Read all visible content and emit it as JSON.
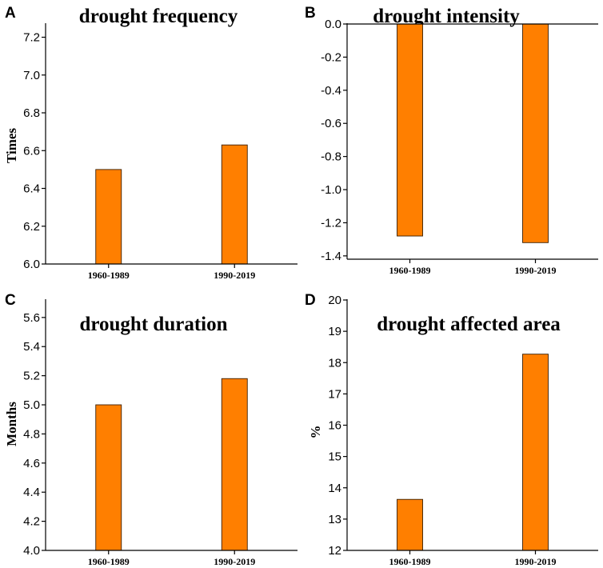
{
  "colors": {
    "bar": "#ff7f00",
    "axis": "#000000"
  },
  "chart_data": [
    {
      "type": "bar",
      "panel": "A",
      "title": "drought frequency",
      "ylabel": "Times",
      "xlabel": "",
      "categories": [
        "1960-1989",
        "1990-2019"
      ],
      "values": [
        6.5,
        6.63
      ],
      "ylim": [
        6.0,
        7.27
      ],
      "yticks": [
        6.0,
        6.2,
        6.4,
        6.6,
        6.8,
        7.0,
        7.2
      ],
      "ytick_labels": [
        "6.0",
        "6.2",
        "6.4",
        "6.6",
        "6.8",
        "7.0",
        "7.2"
      ],
      "baseline": "bottom"
    },
    {
      "type": "bar",
      "panel": "B",
      "title": "drought intensity",
      "ylabel": "",
      "xlabel": "",
      "categories": [
        "1960-1989",
        "1990-2019"
      ],
      "values": [
        -1.28,
        -1.32
      ],
      "ylim": [
        -1.42,
        0.0
      ],
      "yticks": [
        0.0,
        -0.2,
        -0.4,
        -0.6,
        -0.8,
        -1.0,
        -1.2,
        -1.4
      ],
      "ytick_labels": [
        "0.0",
        "-0.2",
        "-0.4",
        "-0.6",
        "-0.8",
        "-1.0",
        "-1.2",
        "-1.4"
      ],
      "baseline": "top"
    },
    {
      "type": "bar",
      "panel": "C",
      "title": "drought duration",
      "ylabel": "Months",
      "xlabel": "",
      "categories": [
        "1960-1989",
        "1990-2019"
      ],
      "values": [
        5.0,
        5.18
      ],
      "ylim": [
        4.0,
        5.72
      ],
      "yticks": [
        4.0,
        4.2,
        4.4,
        4.6,
        4.8,
        5.0,
        5.2,
        5.4,
        5.6
      ],
      "ytick_labels": [
        "4.0",
        "4.2",
        "4.4",
        "4.6",
        "4.8",
        "5.0",
        "5.2",
        "5.4",
        "5.6"
      ],
      "baseline": "bottom"
    },
    {
      "type": "bar",
      "panel": "D",
      "title": "drought affected area",
      "ylabel": "%",
      "xlabel": "",
      "categories": [
        "1960-1989",
        "1990-2019"
      ],
      "values": [
        13.63,
        18.27
      ],
      "ylim": [
        12,
        20
      ],
      "yticks": [
        12,
        13,
        14,
        15,
        16,
        17,
        18,
        19,
        20
      ],
      "ytick_labels": [
        "12",
        "13",
        "14",
        "15",
        "16",
        "17",
        "18",
        "19",
        "20"
      ],
      "baseline": "bottom"
    }
  ]
}
